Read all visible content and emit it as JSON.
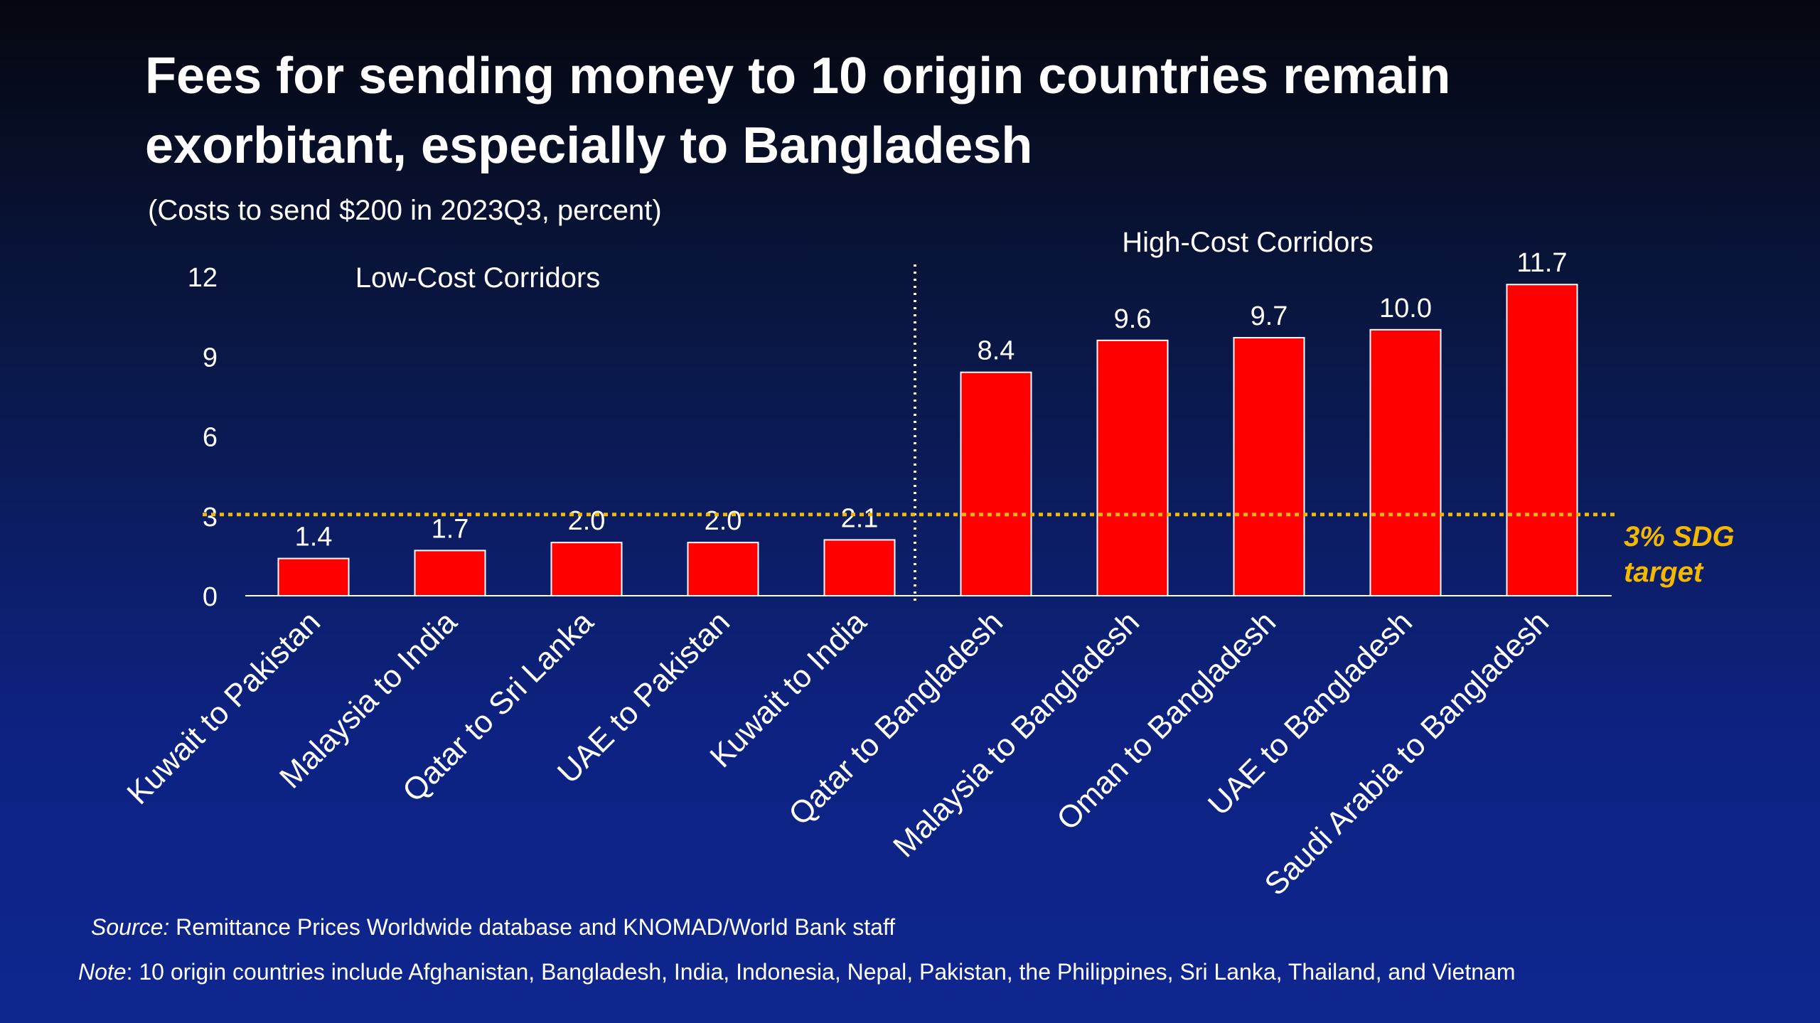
{
  "page": {
    "title": "Fees for sending money to 10 origin countries remain exorbitant, especially to Bangladesh",
    "subtitle": "(Costs to send $200 in 2023Q3, percent)",
    "source_lead": "Source:",
    "source_text": " Remittance Prices Worldwide database and KNOMAD/World Bank staff",
    "note_lead": "Note",
    "note_text": ": 10 origin countries include Afghanistan, Bangladesh, India, Indonesia, Nepal, Pakistan, the Philippines, Sri Lanka, Thailand, and Vietnam"
  },
  "colors": {
    "bar": "#ff0000",
    "target_line": "#f5b800",
    "text": "#ffffff",
    "axis": "#ffffff"
  },
  "chart_data": {
    "type": "bar",
    "categories": [
      "Kuwait to Pakistan",
      "Malaysia to India",
      "Qatar to Sri Lanka",
      "UAE to Pakistan",
      "Kuwait to India",
      "Qatar to Bangladesh",
      "Malaysia to Bangladesh",
      "Oman to Bangladesh",
      "UAE to Bangladesh",
      "Saudi Arabia to Bangladesh"
    ],
    "values": [
      1.4,
      1.7,
      2.0,
      2.0,
      2.1,
      8.4,
      9.6,
      9.7,
      10.0,
      11.7
    ],
    "value_labels": [
      "1.4",
      "1.7",
      "2.0",
      "2.0",
      "2.1",
      "8.4",
      "9.6",
      "9.7",
      "10.0",
      "11.7"
    ],
    "ylim": [
      0,
      12
    ],
    "yticks": [
      "0",
      "3",
      "6",
      "9",
      "12"
    ],
    "ytick_values": [
      0,
      3,
      6,
      9,
      12
    ],
    "group_labels": [
      "Low-Cost Corridors",
      "High-Cost Corridors"
    ],
    "target": {
      "value": 3,
      "label_line1": "3% SDG",
      "label_line2": "target"
    },
    "grid": false,
    "legend": "none"
  }
}
